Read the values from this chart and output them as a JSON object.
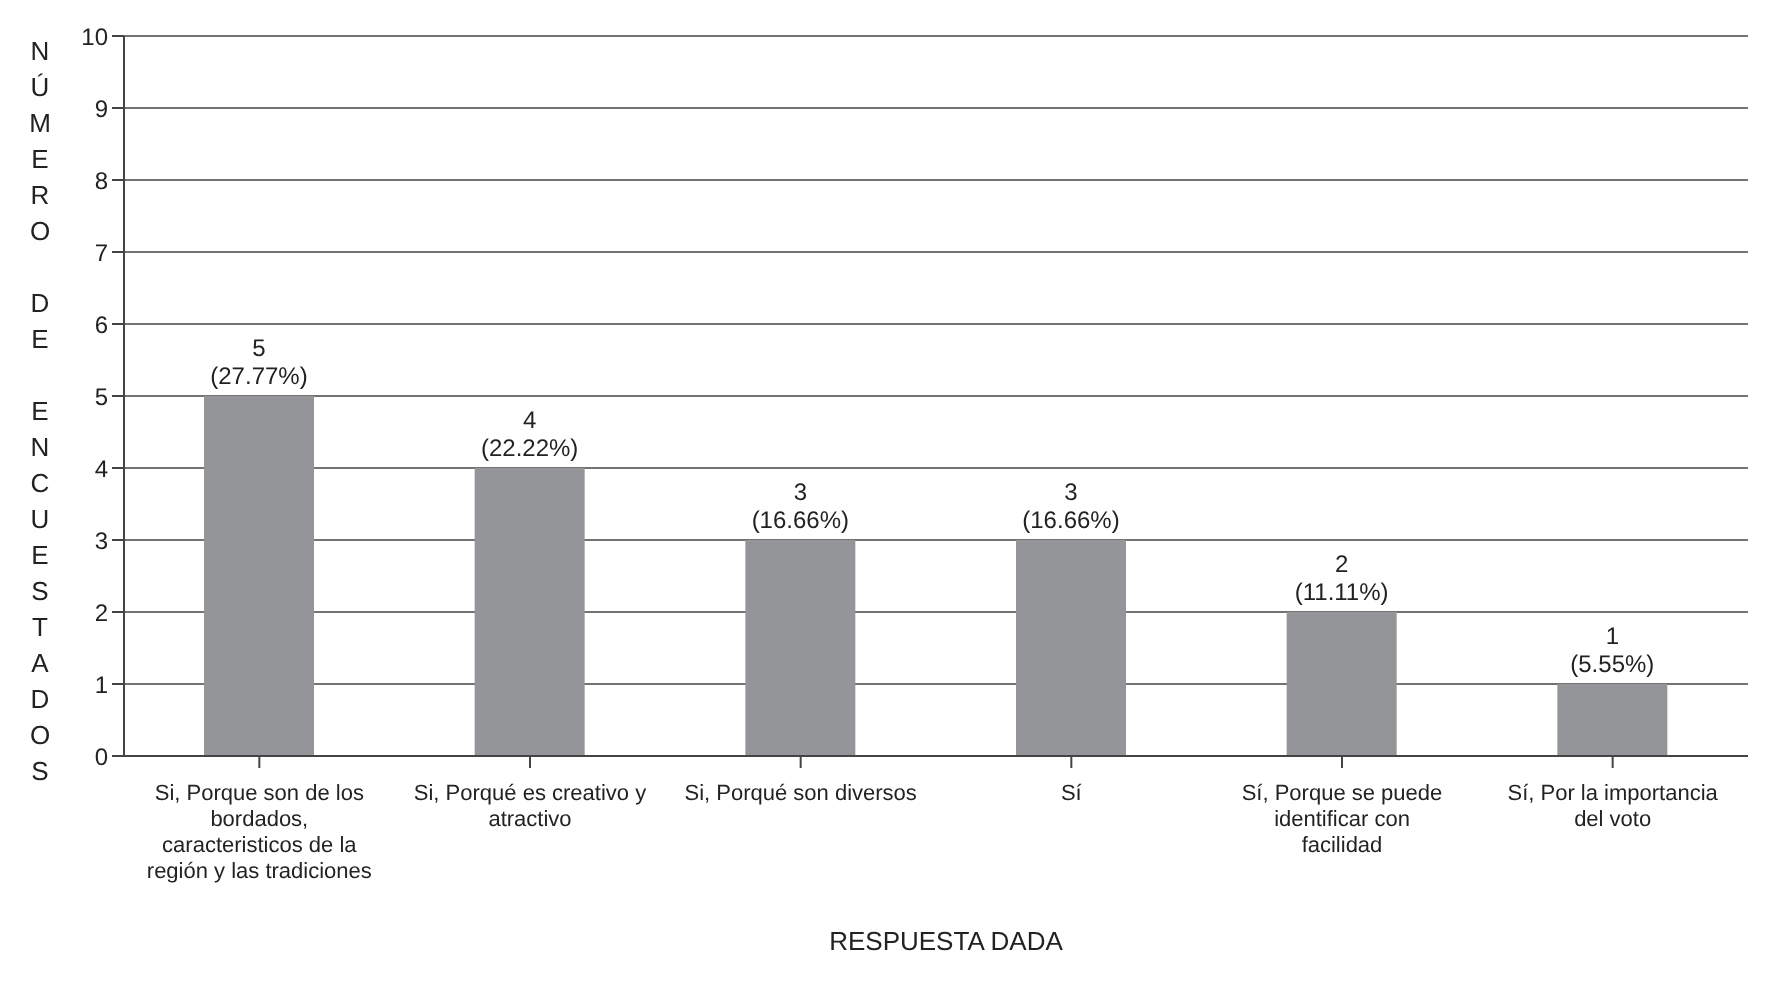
{
  "chart_data": {
    "type": "bar",
    "xlabel": "RESPUESTA DADA",
    "ylabel": "NÚMERO DE ENCUESTADOS",
    "categories": [
      "Si, Porque son de los bordados, caracteristicos de la región y las tradiciones",
      "Si, Porqué es creativo y atractivo",
      "Si, Porqué son diversos",
      "Sí",
      "Sí, Porque se puede identificar con facilidad",
      "Sí, Por la importancia del voto"
    ],
    "values": [
      5,
      4,
      3,
      3,
      2,
      1
    ],
    "value_labels": [
      "5 (27.77%)",
      "4 (22.22%)",
      "3 (16.66%)",
      "3 (16.66%)",
      "2 (11.11%)",
      "1 (5.55%)"
    ],
    "color": "#939598",
    "ylim": [
      0,
      10
    ],
    "yticks": [
      0,
      1,
      2,
      3,
      4,
      5,
      6,
      7,
      8,
      9,
      10
    ],
    "grid": "y",
    "legend": false
  }
}
